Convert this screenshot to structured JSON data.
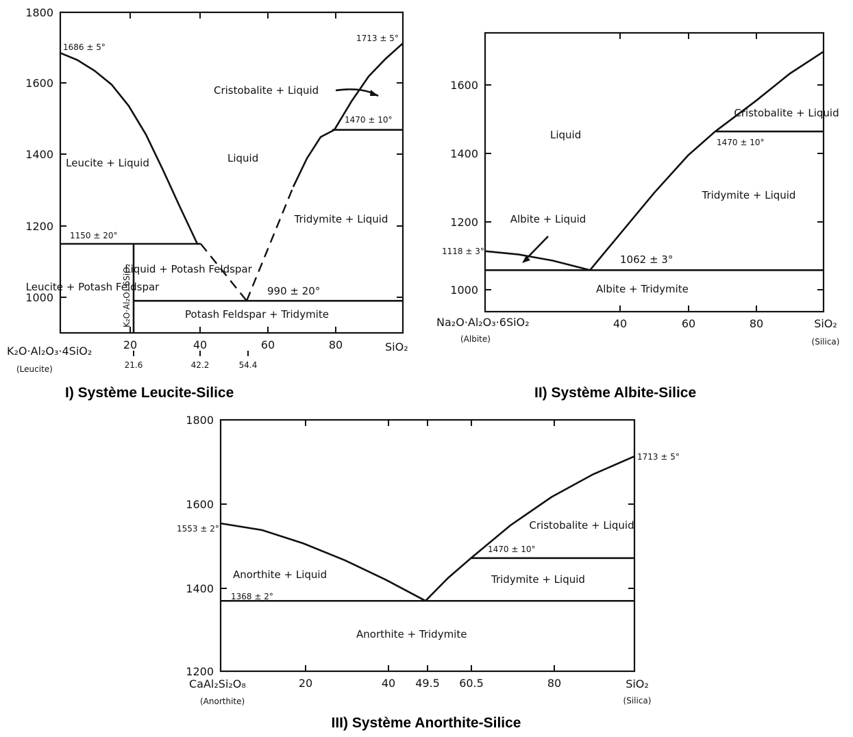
{
  "chart_data": [
    {
      "type": "line",
      "caption": "I) Système Leucite-Silice",
      "xlim": [
        0,
        100
      ],
      "ylim": [
        900,
        1800
      ],
      "y_ticks": [
        "1800",
        "1600",
        "1400",
        "1200",
        "1000"
      ],
      "x_ticks": [
        "20",
        "40",
        "60",
        "80"
      ],
      "x_left_label": "K₂O·Al₂O₃·4SiO₂",
      "x_left_sub": "(Leucite)",
      "x_right_label": "SiO₂",
      "x_marks": [
        "21.6",
        "42.2",
        "54.4"
      ],
      "vertical_compound": "K₂O·Al₂O₃·6SiO₂",
      "point_labels": [
        "1686 ± 5°",
        "1713 ± 5°",
        "1470 ± 10°",
        "1150 ± 20°",
        "990 ± 20°"
      ],
      "region_labels": [
        "Cristobalite + Liquid",
        "Leucite + Liquid",
        "Liquid",
        "Tridymite + Liquid",
        "Leucite + Potash Feldspar",
        "Liquid + Potash Feldspar",
        "Potash Feldspar + Tridymite"
      ],
      "series": [
        {
          "x": [
            0,
            5,
            10,
            15,
            20,
            25,
            30,
            35,
            40,
            41
          ],
          "y": [
            1686,
            1666,
            1636,
            1597,
            1537,
            1457,
            1357,
            1252,
            1150,
            1150
          ]
        },
        {
          "x": [
            41,
            54.4
          ],
          "y": [
            1150,
            990
          ],
          "style": "dashed"
        },
        {
          "x": [
            54.4,
            68
          ],
          "y": [
            990,
            1310
          ],
          "style": "dashed"
        },
        {
          "x": [
            68,
            72,
            76,
            80,
            85,
            90,
            95,
            100
          ],
          "y": [
            1310,
            1390,
            1450,
            1470,
            1550,
            1620,
            1670,
            1713
          ]
        }
      ],
      "isotherms": [
        1470,
        1150,
        990
      ]
    },
    {
      "type": "line",
      "caption": "II) Système Albite-Silice",
      "xlim": [
        0,
        100
      ],
      "ylim": [
        940,
        1760
      ],
      "y_ticks": [
        "1600",
        "1400",
        "1200",
        "1000"
      ],
      "x_ticks": [
        "40",
        "60",
        "80"
      ],
      "x_left_label": "Na₂O·Al₂O₃·6SiO₂",
      "x_left_sub": "(Albite)",
      "x_right_label": "SiO₂",
      "x_right_sub": "(Silica)",
      "point_labels": [
        "1118 ± 3°",
        "1062 ± 3°",
        "1470 ± 10°"
      ],
      "region_labels": [
        "Liquid",
        "Cristobalite + Liquid",
        "Tridymite + Liquid",
        "Albite + Liquid",
        "Albite + Tridymite"
      ],
      "series": [
        {
          "x": [
            0,
            10,
            20,
            31
          ],
          "y": [
            1118,
            1108,
            1090,
            1062
          ]
        },
        {
          "x": [
            31,
            40,
            50,
            60,
            68,
            80,
            90,
            100
          ],
          "y": [
            1062,
            1170,
            1290,
            1400,
            1470,
            1560,
            1640,
            1705
          ]
        }
      ],
      "isotherms": [
        1470,
        1062
      ]
    },
    {
      "type": "line",
      "caption": "III) Système Anorthite-Silice",
      "xlim": [
        0,
        100
      ],
      "ylim": [
        1200,
        1800
      ],
      "y_ticks": [
        "1800",
        "1600",
        "1400",
        "1200"
      ],
      "x_ticks": [
        "20",
        "40",
        "49.5",
        "60.5",
        "80"
      ],
      "x_left_label": "CaAl₂Si₂O₈",
      "x_left_sub": "(Anorthite)",
      "x_right_label": "SiO₂",
      "x_right_sub": "(Silica)",
      "point_labels": [
        "1553 ± 2°",
        "1368 ± 2°",
        "1713 ± 5°",
        "1470 ± 10°"
      ],
      "region_labels": [
        "Anorthite + Liquid",
        "Tridymite + Liquid",
        "Cristobalite + Liquid",
        "Anorthite + Tridymite"
      ],
      "series": [
        {
          "x": [
            0,
            10,
            20,
            30,
            40,
            49.5
          ],
          "y": [
            1553,
            1537,
            1505,
            1465,
            1418,
            1368
          ]
        },
        {
          "x": [
            49.5,
            55,
            60.5,
            70,
            80,
            90,
            100
          ],
          "y": [
            1368,
            1423,
            1470,
            1548,
            1616,
            1670,
            1713
          ]
        }
      ],
      "isotherms": [
        1470,
        1368
      ]
    }
  ]
}
